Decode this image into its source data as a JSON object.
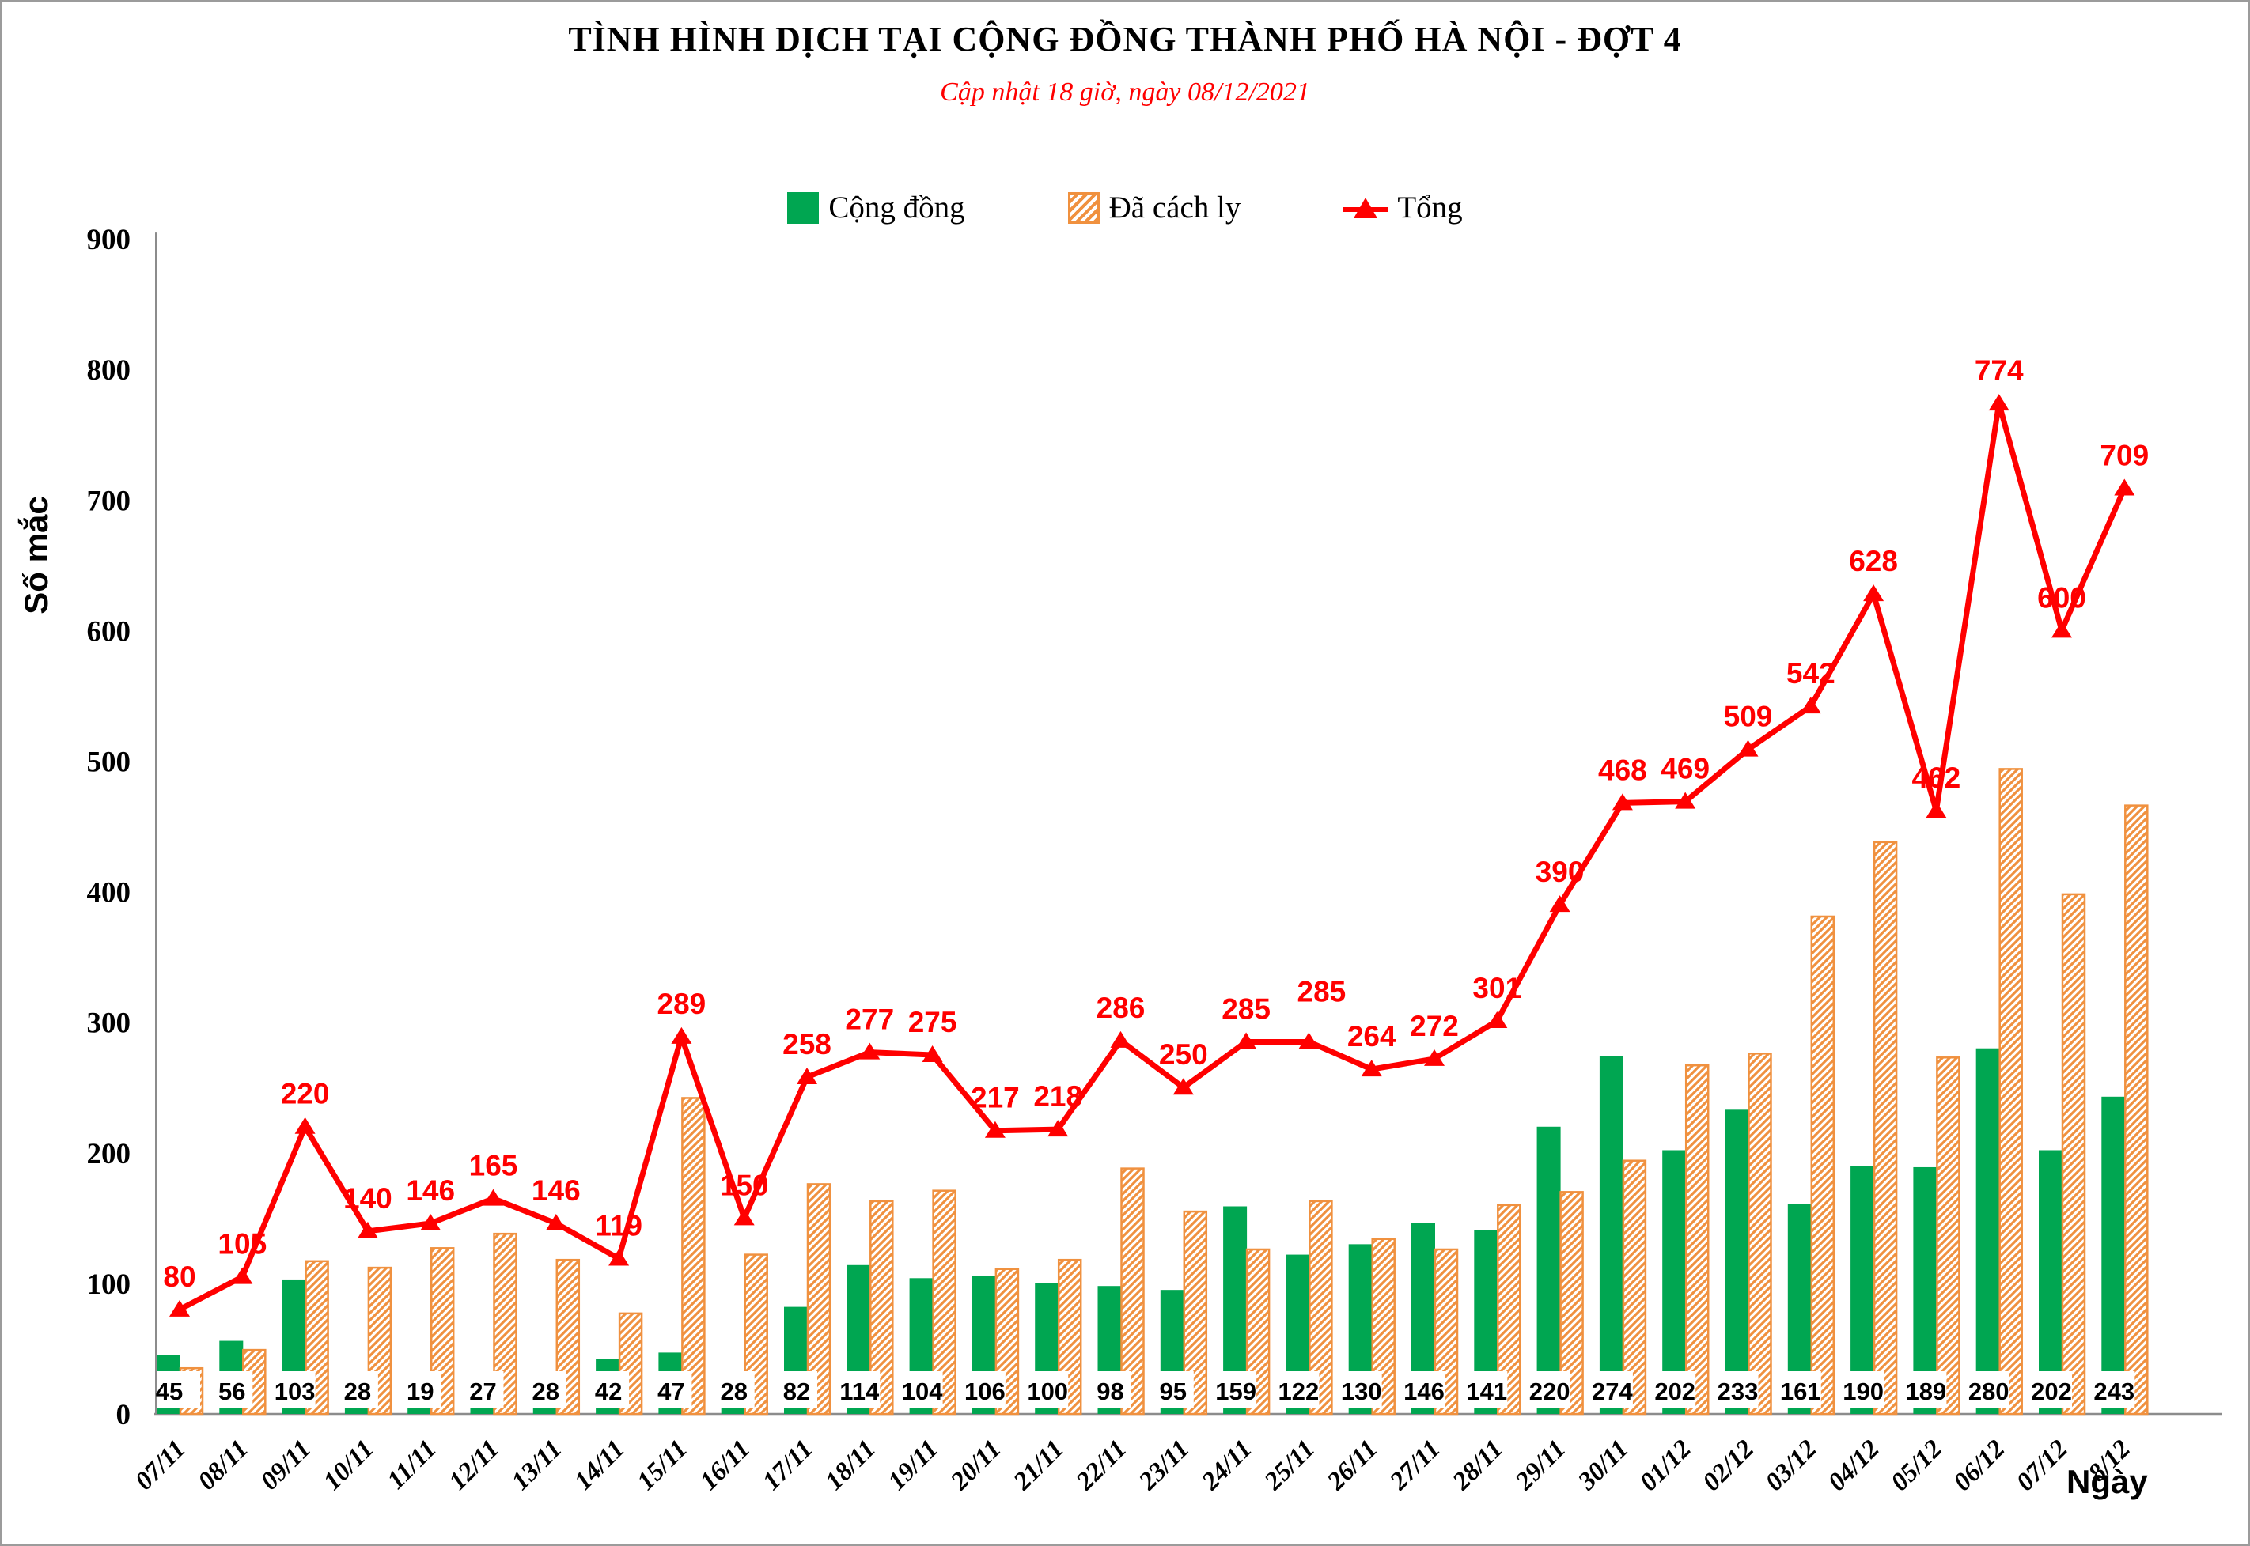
{
  "title": "TÌNH HÌNH DỊCH TẠI CỘNG ĐỒNG THÀNH PHỐ HÀ NỘI - ĐỢT 4",
  "subtitle": "Cập nhật 18 giờ, ngày 08/12/2021",
  "legend": [
    {
      "label": "Cộng đồng",
      "swatch": "solid-green-square"
    },
    {
      "label": "Đã cách ly",
      "swatch": "orange-hatched-square"
    },
    {
      "label": "Tổng",
      "swatch": "red-line-with-triangle-marker"
    }
  ],
  "colors": {
    "community_green": "#00a651",
    "quarantine_orange": "#f0913f",
    "total_red": "#ff0000",
    "axis_gray": "#8c8c8c",
    "text_black": "#000000",
    "subtitle_red": "#ff0000"
  },
  "chart_data": {
    "type": "combo_bar_line",
    "title": "TÌNH HÌNH DỊCH TẠI CỘNG ĐỒNG THÀNH PHỐ HÀ NỘI - ĐỢT 4",
    "subtitle": "Cập nhật 18 giờ, ngày 08/12/2021",
    "x_axis_title": "Ngày",
    "y_axis_title": "Số mắc",
    "ylim": [
      0,
      900
    ],
    "ytick_step": 100,
    "grid": "off",
    "legend_position": "top",
    "categories": [
      "07/11",
      "08/11",
      "09/11",
      "10/11",
      "11/11",
      "12/11",
      "13/11",
      "14/11",
      "15/11",
      "16/11",
      "17/11",
      "18/11",
      "19/11",
      "20/11",
      "21/11",
      "22/11",
      "23/11",
      "24/11",
      "25/11",
      "26/11",
      "27/11",
      "28/11",
      "29/11",
      "30/11",
      "01/12",
      "02/12",
      "03/12",
      "04/12",
      "05/12",
      "06/12",
      "07/12",
      "8/12"
    ],
    "series": [
      {
        "name": "Cộng đồng",
        "type": "bar",
        "style": "solid-green",
        "values": [
          45,
          56,
          103,
          28,
          19,
          27,
          28,
          42,
          47,
          28,
          82,
          114,
          104,
          106,
          100,
          98,
          95,
          159,
          122,
          130,
          146,
          141,
          220,
          274,
          202,
          233,
          161,
          190,
          189,
          280,
          202,
          243
        ],
        "labels_shown": true,
        "label_position": "inside-base-white-box"
      },
      {
        "name": "Đã cách ly",
        "type": "bar",
        "style": "orange-diagonal-hatch",
        "values": [
          35,
          49,
          117,
          112,
          127,
          138,
          118,
          77,
          242,
          122,
          176,
          163,
          171,
          111,
          118,
          188,
          155,
          126,
          163,
          134,
          126,
          160,
          170,
          194,
          267,
          276,
          381,
          438,
          273,
          494,
          398,
          466
        ],
        "labels_shown": false
      },
      {
        "name": "Tổng",
        "type": "line",
        "style": "red-triangle-markers",
        "values": [
          80,
          105,
          220,
          140,
          146,
          165,
          146,
          119,
          289,
          150,
          258,
          277,
          275,
          217,
          218,
          286,
          250,
          285,
          285,
          264,
          272,
          301,
          390,
          468,
          469,
          509,
          542,
          628,
          462,
          774,
          600,
          709
        ],
        "labels_shown": true,
        "label_position": "above"
      }
    ]
  }
}
